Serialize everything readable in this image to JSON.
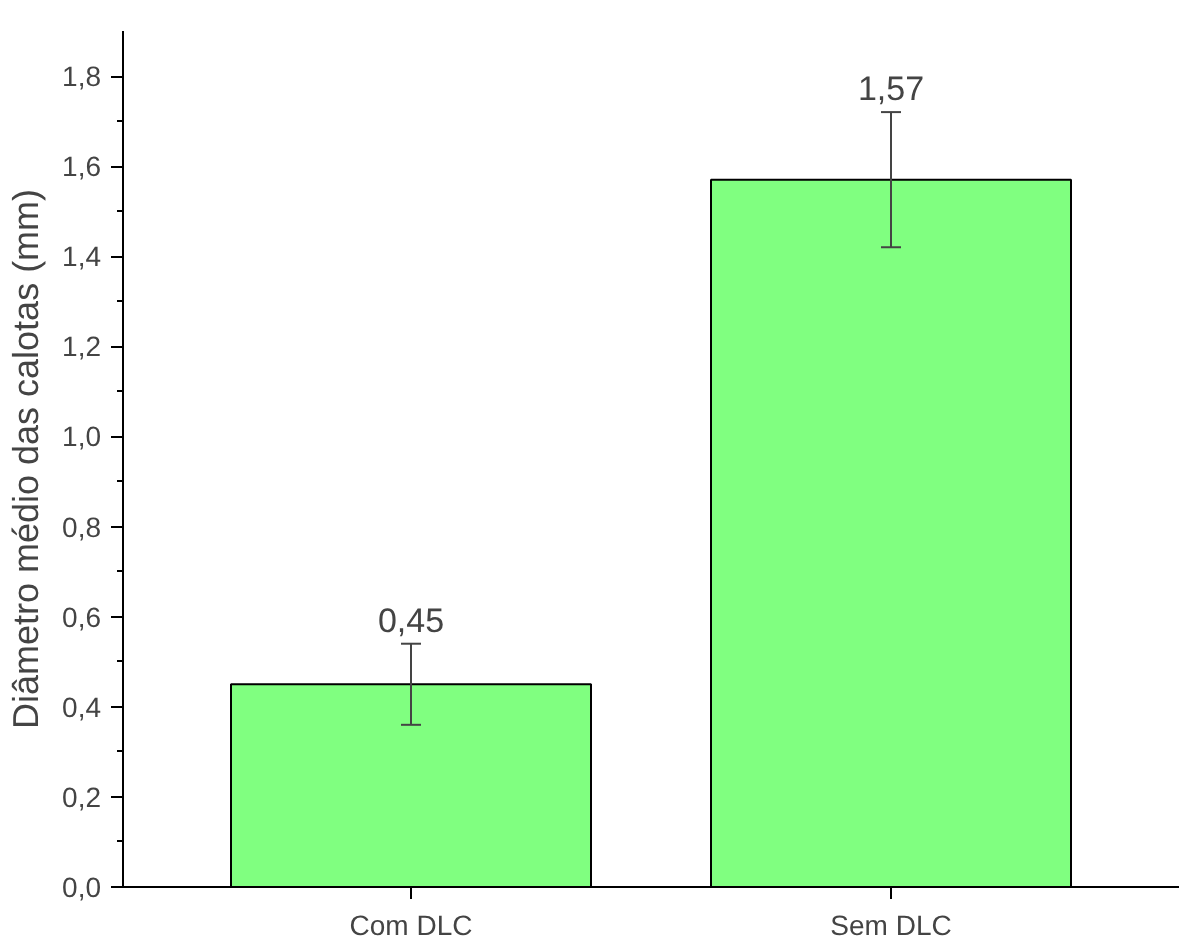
{
  "chart_data": {
    "type": "bar",
    "ylabel": "Diâmetro médio das calotas (mm)",
    "categories": [
      "Com DLC",
      "Sem DLC"
    ],
    "values": [
      0.45,
      1.57
    ],
    "errors": [
      0.09,
      0.15
    ],
    "value_labels": [
      "0,45",
      "1,57"
    ],
    "color": "#80ff80",
    "ylim": [
      0,
      1.9
    ],
    "yticks": [
      {
        "value": 0,
        "label": "0,0"
      },
      {
        "value": 0.2,
        "label": "0,2"
      },
      {
        "value": 0.4,
        "label": "0,4"
      },
      {
        "value": 0.6,
        "label": "0,6"
      },
      {
        "value": 0.8,
        "label": "0,8"
      },
      {
        "value": 1.0,
        "label": "1,0"
      },
      {
        "value": 1.2,
        "label": "1,2"
      },
      {
        "value": 1.4,
        "label": "1,4"
      },
      {
        "value": 1.6,
        "label": "1,6"
      },
      {
        "value": 1.8,
        "label": "1,8"
      }
    ],
    "grid": false
  }
}
